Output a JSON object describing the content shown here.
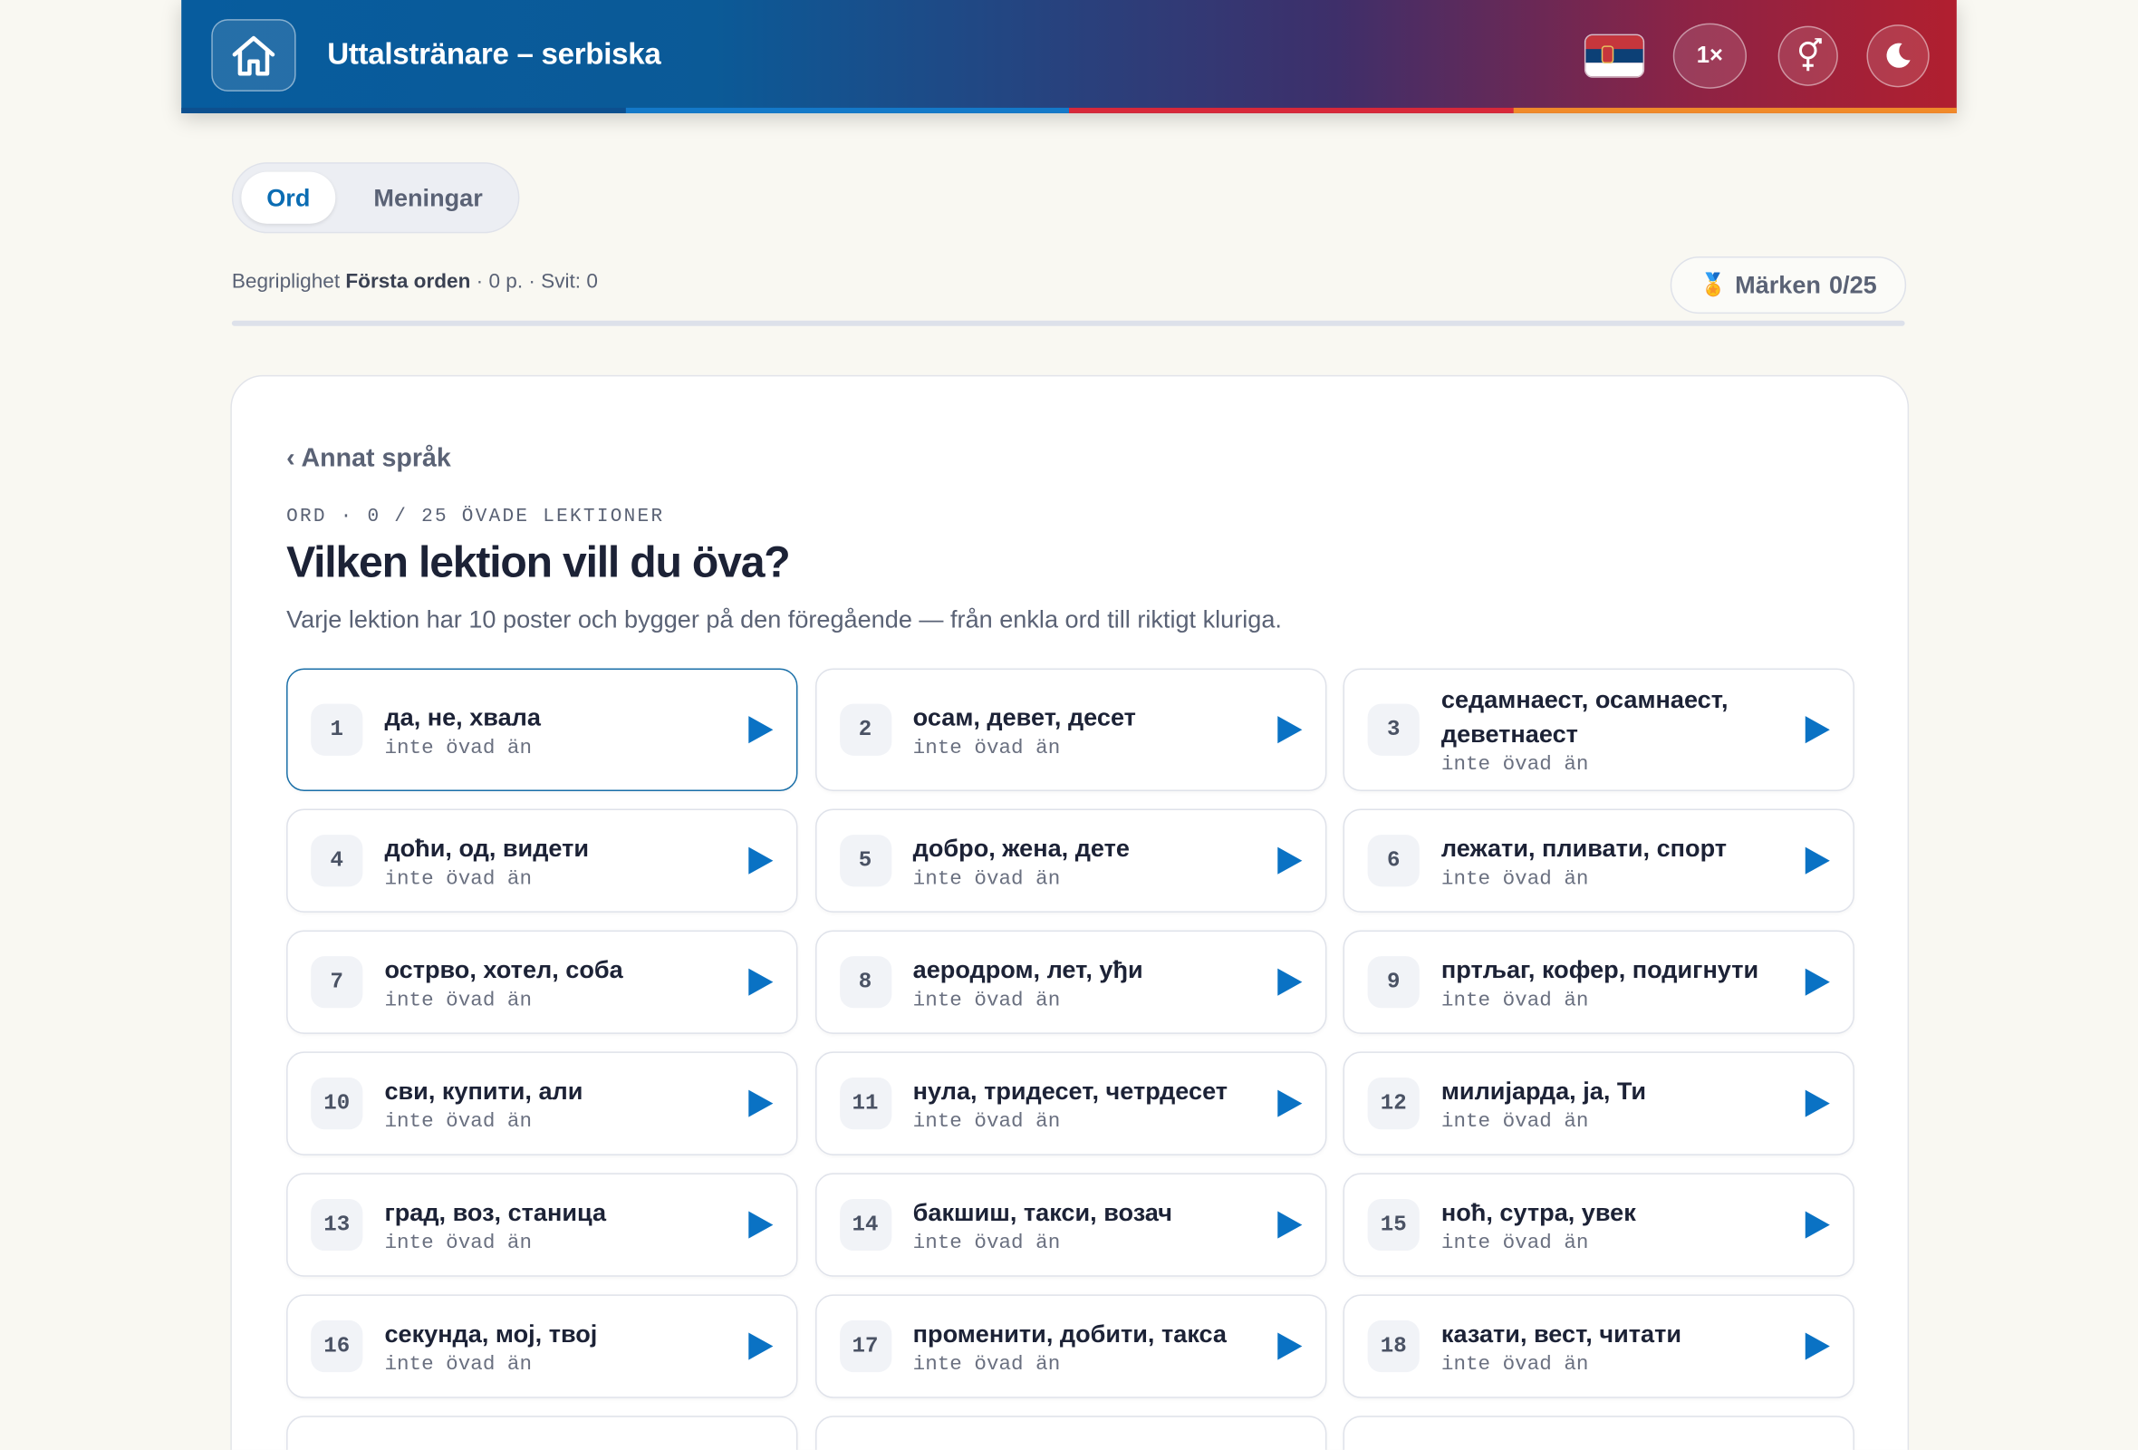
{
  "header": {
    "title": "Uttalstränare – serbiska",
    "speed": "1×"
  },
  "tabs": [
    "Ord",
    "Meningar"
  ],
  "stats": {
    "label": "Begriplighet",
    "level": "Första orden",
    "rest": "· 0 p. · Svit: 0"
  },
  "badge": {
    "label": "Märken",
    "count": "0/25"
  },
  "panel": {
    "back": "Annat språk",
    "eyebrow": "ORD · 0 / 25 ÖVADE LEKTIONER",
    "heading": "Vilken lektion vill du öva?",
    "description": "Varje lektion har 10 poster och bygger på den föregående — från enkla ord till riktigt kluriga."
  },
  "lessons": [
    {
      "number": "1",
      "words": "да, не, хвала",
      "status": "inte övad än"
    },
    {
      "number": "2",
      "words": "осам, девет, десет",
      "status": "inte övad än"
    },
    {
      "number": "3",
      "words": "седамнаест, осамнаест, деветнаест",
      "status": "inte övad än"
    },
    {
      "number": "4",
      "words": "доћи, од, видети",
      "status": "inte övad än"
    },
    {
      "number": "5",
      "words": "добро, жена, дете",
      "status": "inte övad än"
    },
    {
      "number": "6",
      "words": "лежати, пливати, спорт",
      "status": "inte övad än"
    },
    {
      "number": "7",
      "words": "острво, хотел, соба",
      "status": "inte övad än"
    },
    {
      "number": "8",
      "words": "аеродром, лет, уђи",
      "status": "inte övad än"
    },
    {
      "number": "9",
      "words": "пртљаг, кофер, подигнути",
      "status": "inte övad än"
    },
    {
      "number": "10",
      "words": "сви, купити, али",
      "status": "inte övad än"
    },
    {
      "number": "11",
      "words": "нула, тридесет, четрдесет",
      "status": "inte övad än"
    },
    {
      "number": "12",
      "words": "милијарда, ја, Ти",
      "status": "inte övad än"
    },
    {
      "number": "13",
      "words": "град, воз, станица",
      "status": "inte övad än"
    },
    {
      "number": "14",
      "words": "бакшиш, такси, возач",
      "status": "inte övad än"
    },
    {
      "number": "15",
      "words": "ноћ, сутра, увек",
      "status": "inte övad än"
    },
    {
      "number": "16",
      "words": "секунда, мој, твој",
      "status": "inte övad än"
    },
    {
      "number": "17",
      "words": "променити, добити, такса",
      "status": "inte övad än"
    },
    {
      "number": "18",
      "words": "казати, вест, читати",
      "status": "inte övad än"
    }
  ]
}
